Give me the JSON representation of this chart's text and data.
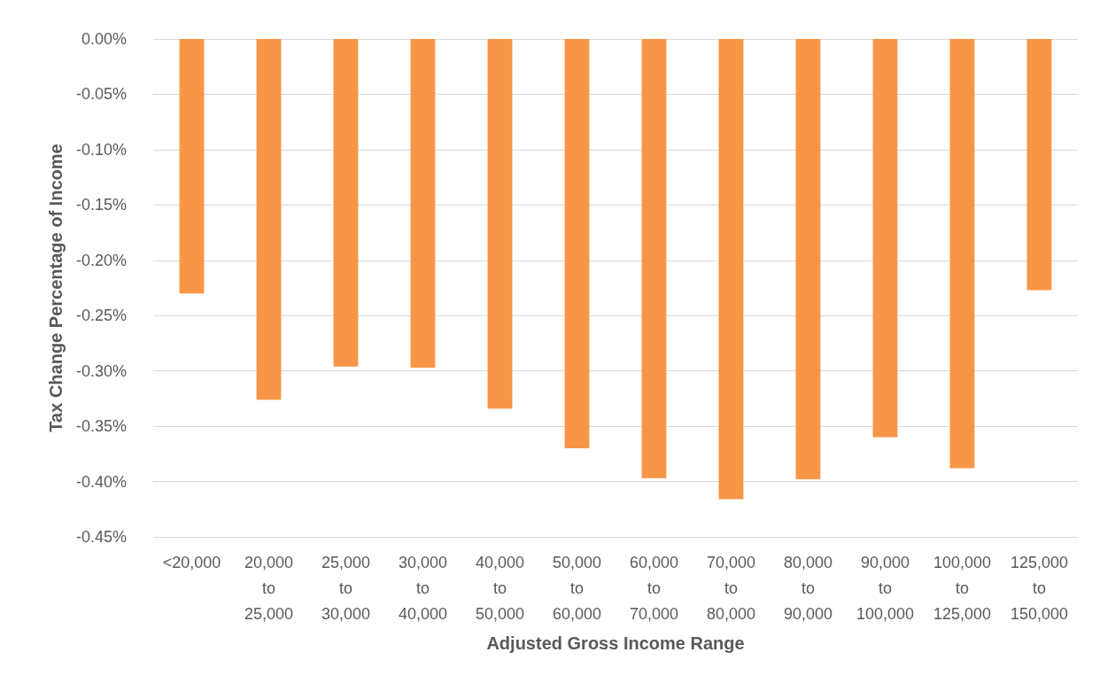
{
  "chart_data": {
    "type": "bar",
    "xlabel": "Adjusted Gross Income Range",
    "ylabel": "Tax Change Percentage of Income",
    "categories": [
      "<20,000",
      "20,000\nto\n25,000",
      "25,000\nto\n30,000",
      "30,000\nto\n40,000",
      "40,000\nto\n50,000",
      "50,000\nto\n60,000",
      "60,000\nto\n70,000",
      "70,000\nto\n80,000",
      "80,000\nto\n90,000",
      "90,000\nto\n100,000",
      "100,000\nto\n125,000",
      "125,000\nto\n150,000"
    ],
    "values": [
      -0.23,
      -0.326,
      -0.296,
      -0.297,
      -0.334,
      -0.37,
      -0.397,
      -0.416,
      -0.398,
      -0.36,
      -0.388,
      -0.227
    ],
    "color": "#f79646",
    "ylim": [
      -0.45,
      0
    ],
    "yticks": [
      {
        "value": 0,
        "label": "0.00%"
      },
      {
        "value": -0.05,
        "label": "-0.05%"
      },
      {
        "value": -0.1,
        "label": "-0.10%"
      },
      {
        "value": -0.15,
        "label": "-0.15%"
      },
      {
        "value": -0.2,
        "label": "-0.20%"
      },
      {
        "value": -0.25,
        "label": "-0.25%"
      },
      {
        "value": -0.3,
        "label": "-0.30%"
      },
      {
        "value": -0.35,
        "label": "-0.35%"
      },
      {
        "value": -0.4,
        "label": "-0.40%"
      },
      {
        "value": -0.45,
        "label": "-0.45%"
      }
    ],
    "grid": "y"
  }
}
